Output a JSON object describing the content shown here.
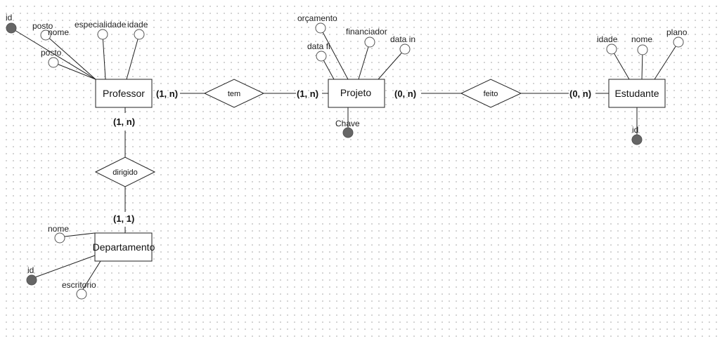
{
  "entities": {
    "professor": "Professor",
    "projeto": "Projeto",
    "estudante": "Estudante",
    "departamento": "Departamento"
  },
  "relationships": {
    "tem": "tem",
    "feito": "feito",
    "dirigido": "dirigido"
  },
  "cardinalities": {
    "prof_tem": "(1, n)",
    "projeto_tem": "(1, n)",
    "projeto_feito": "(0, n)",
    "estudante_feito": "(0, n)",
    "prof_dirigido": "(1, n)",
    "depto_dirigido": "(1, 1)"
  },
  "attributes": {
    "professor": {
      "id": "id",
      "posto_top": "posto",
      "nome": "nome",
      "especialidade": "especialidade",
      "idade": "idade",
      "posto_bottom": "posto"
    },
    "projeto": {
      "orcamento": "orçamento",
      "financiador": "financiador",
      "data_fi": "data fi",
      "data_in": "data in",
      "chave": "Chave"
    },
    "estudante": {
      "idade": "idade",
      "nome": "nome",
      "plano": "plano",
      "id": "id"
    },
    "departamento": {
      "nome": "nome",
      "id": "id",
      "escritorio": "escritorio"
    }
  },
  "colors": {
    "key_attribute": "#666666",
    "line": "#222222"
  }
}
